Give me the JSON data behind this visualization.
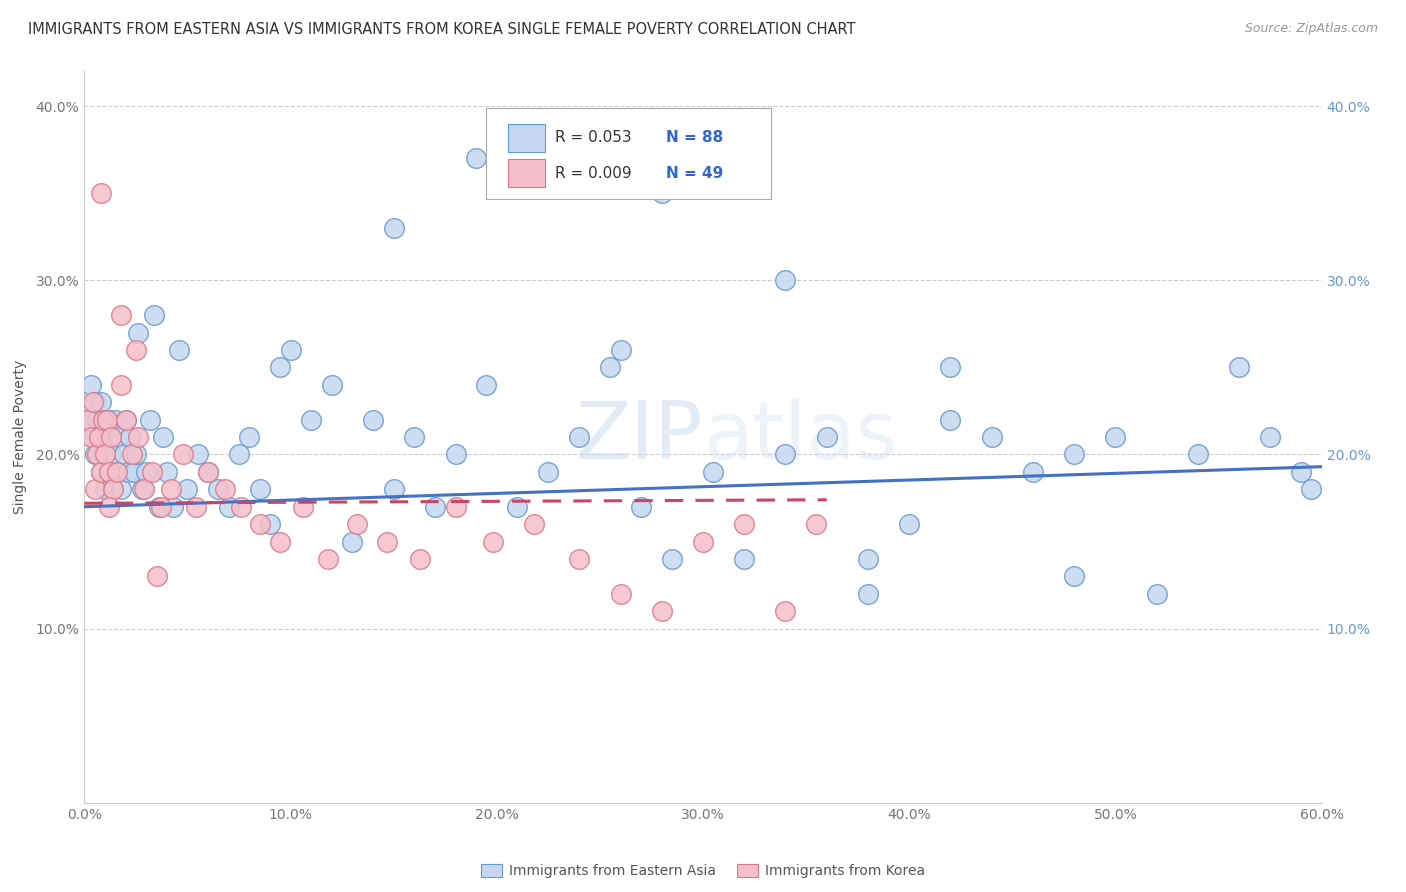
{
  "title": "IMMIGRANTS FROM EASTERN ASIA VS IMMIGRANTS FROM KOREA SINGLE FEMALE POVERTY CORRELATION CHART",
  "source": "Source: ZipAtlas.com",
  "ylabel": "Single Female Poverty",
  "x_label_blue": "Immigrants from Eastern Asia",
  "x_label_pink": "Immigrants from Korea",
  "xlim": [
    0.0,
    0.6
  ],
  "ylim": [
    0.0,
    0.42
  ],
  "xticks": [
    0.0,
    0.1,
    0.2,
    0.3,
    0.4,
    0.5,
    0.6
  ],
  "xticklabels": [
    "0.0%",
    "10.0%",
    "20.0%",
    "30.0%",
    "40.0%",
    "50.0%",
    "60.0%"
  ],
  "yticks": [
    0.0,
    0.1,
    0.2,
    0.3,
    0.4
  ],
  "yticklabels": [
    "",
    "10.0%",
    "20.0%",
    "30.0%",
    "40.0%"
  ],
  "legend_blue_r": "R = 0.053",
  "legend_blue_n": "N = 88",
  "legend_pink_r": "R = 0.009",
  "legend_pink_n": "N = 49",
  "blue_fill": "#c5d8f0",
  "blue_edge": "#6699cc",
  "pink_fill": "#f5c0cb",
  "pink_edge": "#dd7788",
  "blue_line_color": "#4472c4",
  "pink_line_color": "#cc4466",
  "watermark_color": "#d8e8f0",
  "title_fontsize": 10.5,
  "source_fontsize": 9,
  "blue_x": [
    0.002,
    0.003,
    0.004,
    0.005,
    0.005,
    0.006,
    0.007,
    0.008,
    0.008,
    0.009,
    0.01,
    0.01,
    0.011,
    0.012,
    0.012,
    0.013,
    0.014,
    0.015,
    0.016,
    0.017,
    0.018,
    0.019,
    0.02,
    0.021,
    0.022,
    0.024,
    0.025,
    0.026,
    0.028,
    0.03,
    0.032,
    0.034,
    0.036,
    0.038,
    0.04,
    0.043,
    0.046,
    0.05,
    0.055,
    0.06,
    0.065,
    0.07,
    0.075,
    0.08,
    0.085,
    0.09,
    0.095,
    0.1,
    0.11,
    0.12,
    0.13,
    0.14,
    0.15,
    0.16,
    0.17,
    0.18,
    0.195,
    0.21,
    0.225,
    0.24,
    0.255,
    0.27,
    0.285,
    0.305,
    0.32,
    0.34,
    0.36,
    0.38,
    0.4,
    0.42,
    0.44,
    0.46,
    0.48,
    0.5,
    0.52,
    0.54,
    0.56,
    0.575,
    0.59,
    0.595,
    0.34,
    0.28,
    0.19,
    0.15,
    0.26,
    0.42,
    0.38,
    0.48
  ],
  "blue_y": [
    0.22,
    0.24,
    0.21,
    0.23,
    0.2,
    0.22,
    0.21,
    0.19,
    0.23,
    0.2,
    0.22,
    0.18,
    0.21,
    0.19,
    0.22,
    0.2,
    0.18,
    0.22,
    0.19,
    0.21,
    0.18,
    0.2,
    0.22,
    0.19,
    0.21,
    0.19,
    0.2,
    0.27,
    0.18,
    0.19,
    0.22,
    0.28,
    0.17,
    0.21,
    0.19,
    0.17,
    0.26,
    0.18,
    0.2,
    0.19,
    0.18,
    0.17,
    0.2,
    0.21,
    0.18,
    0.16,
    0.25,
    0.26,
    0.22,
    0.24,
    0.15,
    0.22,
    0.18,
    0.21,
    0.17,
    0.2,
    0.24,
    0.17,
    0.19,
    0.21,
    0.25,
    0.17,
    0.14,
    0.19,
    0.14,
    0.2,
    0.21,
    0.12,
    0.16,
    0.22,
    0.21,
    0.19,
    0.2,
    0.21,
    0.12,
    0.2,
    0.25,
    0.21,
    0.19,
    0.18,
    0.3,
    0.35,
    0.37,
    0.33,
    0.26,
    0.25,
    0.14,
    0.13
  ],
  "pink_x": [
    0.002,
    0.003,
    0.004,
    0.005,
    0.006,
    0.007,
    0.008,
    0.009,
    0.01,
    0.011,
    0.012,
    0.013,
    0.014,
    0.016,
    0.018,
    0.02,
    0.023,
    0.026,
    0.029,
    0.033,
    0.037,
    0.042,
    0.048,
    0.054,
    0.06,
    0.068,
    0.076,
    0.085,
    0.095,
    0.106,
    0.118,
    0.132,
    0.147,
    0.163,
    0.18,
    0.198,
    0.218,
    0.24,
    0.26,
    0.28,
    0.3,
    0.32,
    0.34,
    0.355,
    0.025,
    0.018,
    0.008,
    0.012,
    0.035
  ],
  "pink_y": [
    0.22,
    0.21,
    0.23,
    0.18,
    0.2,
    0.21,
    0.19,
    0.22,
    0.2,
    0.22,
    0.19,
    0.21,
    0.18,
    0.19,
    0.28,
    0.22,
    0.2,
    0.21,
    0.18,
    0.19,
    0.17,
    0.18,
    0.2,
    0.17,
    0.19,
    0.18,
    0.17,
    0.16,
    0.15,
    0.17,
    0.14,
    0.16,
    0.15,
    0.14,
    0.17,
    0.15,
    0.16,
    0.14,
    0.12,
    0.11,
    0.15,
    0.16,
    0.11,
    0.16,
    0.26,
    0.24,
    0.35,
    0.17,
    0.13
  ],
  "blue_trend_x": [
    0.0,
    0.6
  ],
  "blue_trend_y": [
    0.17,
    0.193
  ],
  "pink_trend_x": [
    0.0,
    0.36
  ],
  "pink_trend_y": [
    0.172,
    0.174
  ]
}
